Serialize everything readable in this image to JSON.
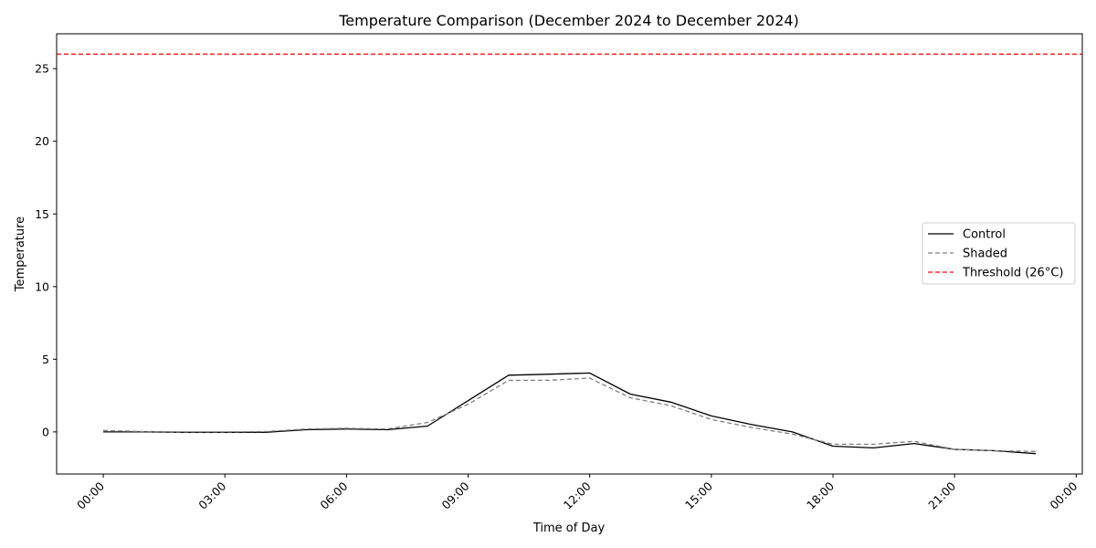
{
  "chart_data": {
    "type": "line",
    "title": "Temperature Comparison (December 2024 to December 2024)",
    "xlabel": "Time of Day",
    "ylabel": "Temperature",
    "x": [
      0,
      1,
      2,
      3,
      4,
      5,
      6,
      7,
      8,
      9,
      10,
      11,
      12,
      13,
      14,
      15,
      16,
      17,
      18,
      19,
      20,
      21,
      22,
      23
    ],
    "xlim": [
      -1.15,
      24.15
    ],
    "ylim": [
      -2.9,
      27.4
    ],
    "xticks": [
      0,
      3,
      6,
      9,
      12,
      15,
      18,
      21,
      24
    ],
    "xtick_labels": [
      "00:00",
      "03:00",
      "06:00",
      "09:00",
      "12:00",
      "15:00",
      "18:00",
      "21:00",
      "00:00"
    ],
    "yticks": [
      0,
      5,
      10,
      15,
      20,
      25
    ],
    "ytick_labels": [
      "0",
      "5",
      "10",
      "15",
      "20",
      "25"
    ],
    "grid": false,
    "legend_position": "center-right",
    "series": [
      {
        "name": "Control",
        "color": "#000000",
        "line_style": "solid",
        "values": [
          0.0,
          0.0,
          -0.03,
          -0.03,
          -0.03,
          0.15,
          0.2,
          0.15,
          0.4,
          2.15,
          3.9,
          3.97,
          4.05,
          2.6,
          2.05,
          1.1,
          0.5,
          0.0,
          -0.98,
          -1.1,
          -0.8,
          -1.2,
          -1.3,
          -1.5
        ]
      },
      {
        "name": "Shaded",
        "color": "#808080",
        "line_style": "dashed",
        "values": [
          0.1,
          0.02,
          0.0,
          0.0,
          0.02,
          0.2,
          0.25,
          0.2,
          0.65,
          1.9,
          3.55,
          3.55,
          3.7,
          2.35,
          1.8,
          0.85,
          0.3,
          -0.15,
          -0.85,
          -0.85,
          -0.65,
          -1.2,
          -1.3,
          -1.35
        ]
      }
    ],
    "reference_lines": [
      {
        "name": "Threshold (26°C)",
        "value": 26,
        "orientation": "horizontal",
        "color": "#ff0000",
        "line_style": "dashed"
      }
    ]
  }
}
